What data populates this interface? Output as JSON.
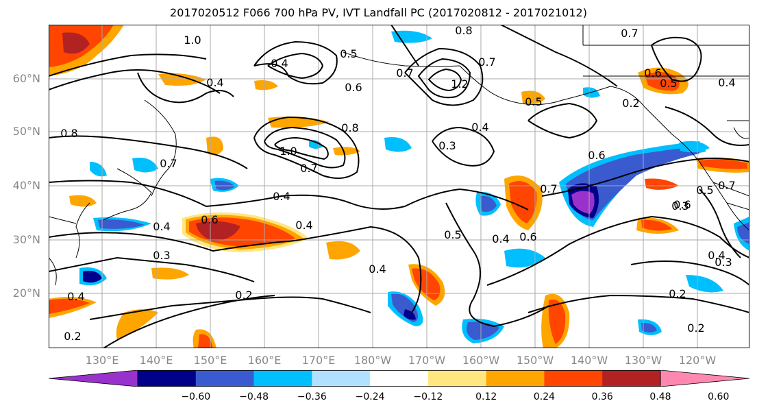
{
  "title": "2017020512 F066 700 hPa PV, IVT Landfall PC (2017020812 - 2017021012)",
  "lat_labels": [
    "60°N",
    "50°N",
    "40°N",
    "30°N",
    "20°N"
  ],
  "lon_labels": [
    "130°E",
    "140°E",
    "150°E",
    "160°E",
    "170°E",
    "180°W",
    "170°W",
    "160°W",
    "150°W",
    "140°W",
    "130°W",
    "120°W"
  ],
  "colorbar": {
    "colors": [
      "#9932cc",
      "#00008b",
      "#3a5bcf",
      "#00bfff",
      "#b0e2ff",
      "#ffffff",
      "#ffe680",
      "#ffa500",
      "#ff4500",
      "#b22222",
      "#ff88b0"
    ],
    "tick_labels": [
      "−0.60",
      "−0.48",
      "−0.36",
      "−0.24",
      "−0.12",
      "0.12",
      "0.24",
      "0.36",
      "0.48",
      "0.60"
    ]
  },
  "contour_labels": [
    "1.0",
    "0.4",
    "0.5",
    "0.8",
    "0.7",
    "0.6",
    "0.4",
    "0.6",
    "0.7",
    "1.2",
    "0.7",
    "0.5",
    "0.4",
    "0.2",
    "0.8",
    "0.7",
    "0.4",
    "0.8",
    "0.3",
    "0.5",
    "1.0",
    "0.7",
    "0.4",
    "0.6",
    "0.6",
    "0.4",
    "0.5",
    "0.3",
    "0.4",
    "0.2",
    "0.4",
    "0.7",
    "0.5",
    "0.4",
    "0.6",
    "0.7",
    "0.3",
    "0.4",
    "0.6",
    "0.2",
    "0.3",
    "0.2",
    "0.2",
    "0.4"
  ],
  "colors": {
    "contour": "#000000",
    "coastline": "#000000",
    "grid": "#aaaaaa",
    "axis_label": "#888888"
  }
}
